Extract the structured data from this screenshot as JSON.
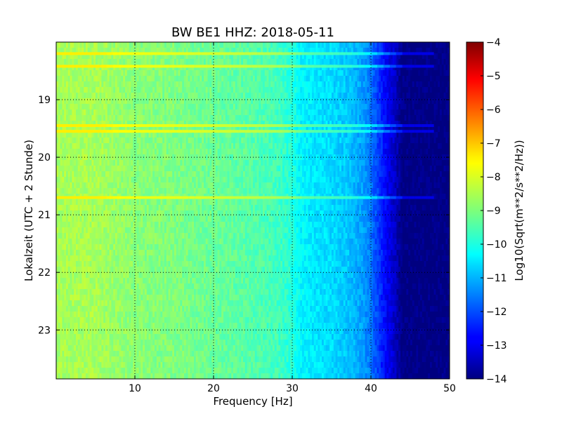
{
  "chart_data": {
    "type": "heatmap",
    "title": "BW BE1 HHZ: 2018-05-11",
    "xlabel": "Frequency [Hz]",
    "ylabel": "Lokalzeit (UTC + 2 Stunde)",
    "xlim": [
      0,
      50
    ],
    "ylim": [
      18.0,
      23.85
    ],
    "y_inverted": true,
    "x_ticks": [
      "10",
      "20",
      "30",
      "40",
      "50"
    ],
    "y_ticks": [
      "19",
      "20",
      "21",
      "22",
      "23"
    ],
    "grid": true,
    "colorbar": {
      "label": "Log10(Sqrt(m**2/s**2/Hz))",
      "range": [
        -14,
        -4
      ],
      "ticks": [
        "-4",
        "-5",
        "-6",
        "-7",
        "-8",
        "-9",
        "-10",
        "-11",
        "-12",
        "-13",
        "-14"
      ],
      "colormap": "jet"
    },
    "spectral_profile": {
      "description_free": true,
      "frequency_hz": [
        0,
        5,
        10,
        15,
        20,
        25,
        28,
        30,
        31,
        33,
        35,
        37,
        39,
        40,
        41,
        42,
        43,
        44,
        50
      ],
      "log10_amplitude": [
        -8.6,
        -8.6,
        -8.9,
        -9.0,
        -9.2,
        -9.4,
        -9.6,
        -9.9,
        -10.3,
        -10.5,
        -10.6,
        -10.8,
        -11.2,
        -11.6,
        -12.2,
        -12.8,
        -13.3,
        -14.0,
        -14.0
      ]
    },
    "bright_bands_time_h": [
      18.2,
      18.42,
      19.45,
      19.55,
      20.7
    ]
  }
}
